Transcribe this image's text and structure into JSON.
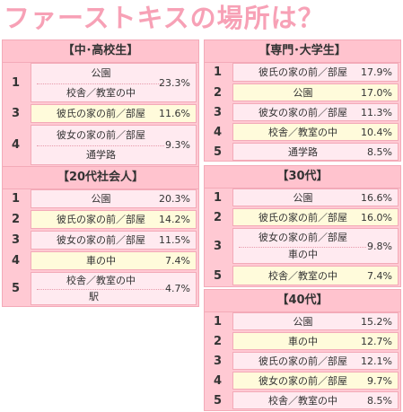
{
  "title": "ファーストキスの場所は？",
  "panels": {
    "p1": {
      "header": "【中･高校生】",
      "r1": {
        "rank": "1",
        "item1": "公園",
        "item2": "校舎／教室の中",
        "pct": "23.3%"
      },
      "r2": {
        "rank": "3",
        "item": "彼氏の家の前／部屋",
        "pct": "11.6%"
      },
      "r3": {
        "rank": "4",
        "item1": "彼女の家の前／部屋",
        "item2": "通学路",
        "pct": "9.3%"
      }
    },
    "p2": {
      "header": "【20代社会人】",
      "r1": {
        "rank": "1",
        "item": "公園",
        "pct": "20.3%"
      },
      "r2": {
        "rank": "2",
        "item": "彼氏の家の前／部屋",
        "pct": "14.2%"
      },
      "r3": {
        "rank": "3",
        "item": "彼女の家の前／部屋",
        "pct": "11.5%"
      },
      "r4": {
        "rank": "4",
        "item": "車の中",
        "pct": "7.4%"
      },
      "r5": {
        "rank": "5",
        "item1": "校舎／教室の中",
        "item2": "駅",
        "pct": "4.7%"
      }
    },
    "p3": {
      "header": "【専門･大学生】",
      "r1": {
        "rank": "1",
        "item": "彼氏の家の前／部屋",
        "pct": "17.9%"
      },
      "r2": {
        "rank": "2",
        "item": "公園",
        "pct": "17.0%"
      },
      "r3": {
        "rank": "3",
        "item": "彼女の家の前／部屋",
        "pct": "11.3%"
      },
      "r4": {
        "rank": "4",
        "item": "校舎／教室の中",
        "pct": "10.4%"
      },
      "r5": {
        "rank": "5",
        "item": "通学路",
        "pct": "8.5%"
      }
    },
    "p4": {
      "header": "【30代】",
      "r1": {
        "rank": "1",
        "item": "公園",
        "pct": "16.6%"
      },
      "r2": {
        "rank": "2",
        "item": "彼氏の家の前／部屋",
        "pct": "16.0%"
      },
      "r3": {
        "rank": "3",
        "item1": "彼女の家の前／部屋",
        "item2": "車の中",
        "pct": "9.8%"
      },
      "r4": {
        "rank": "5",
        "item": "校舎／教室の中",
        "pct": "7.4%"
      }
    },
    "p5": {
      "header": "【40代】",
      "r1": {
        "rank": "1",
        "item": "公園",
        "pct": "15.2%"
      },
      "r2": {
        "rank": "2",
        "item": "車の中",
        "pct": "12.7%"
      },
      "r3": {
        "rank": "3",
        "item": "彼氏の家の前／部屋",
        "pct": "12.1%"
      },
      "r4": {
        "rank": "4",
        "item": "彼女の家の前／部屋",
        "pct": "9.7%"
      },
      "r5": {
        "rank": "5",
        "item": "校舎／教室の中",
        "pct": "8.5%"
      }
    }
  }
}
